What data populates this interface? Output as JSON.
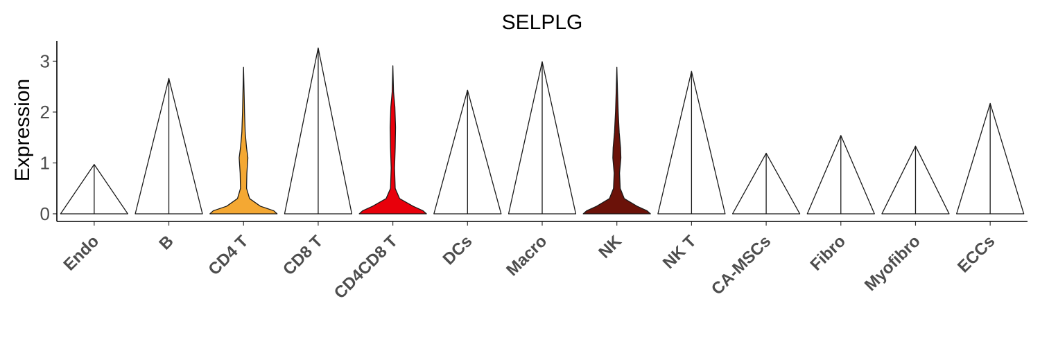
{
  "chart_data": {
    "type": "violin",
    "title": "SELPLG",
    "xlabel": "",
    "ylabel": "Expression",
    "ylim": [
      -0.15,
      3.4
    ],
    "yticks": [
      "0",
      "1",
      "2",
      "3"
    ],
    "grid": false,
    "legend": "none",
    "categories": [
      "Endo",
      "B",
      "CD4 T",
      "CD8 T",
      "CD4CD8 T",
      "DCs",
      "Macro",
      "NK",
      "NK T",
      "CA-MSCs",
      "Fibro",
      "Myofibro",
      "ECCs"
    ],
    "violins": [
      {
        "name": "Endo",
        "max": 0.97,
        "color": "#ffffff",
        "profile": [
          [
            0,
            1.0
          ],
          [
            0.97,
            0.0
          ]
        ]
      },
      {
        "name": "B",
        "max": 2.66,
        "color": "#ffffff",
        "profile": [
          [
            0,
            1.0
          ],
          [
            2.66,
            0.0
          ]
        ]
      },
      {
        "name": "CD4 T",
        "max": 2.88,
        "color": "#f4a833",
        "profile": [
          [
            0,
            1.0
          ],
          [
            0.06,
            0.9
          ],
          [
            0.15,
            0.5
          ],
          [
            0.3,
            0.18
          ],
          [
            0.5,
            0.09
          ],
          [
            0.8,
            0.1
          ],
          [
            1.1,
            0.13
          ],
          [
            1.3,
            0.09
          ],
          [
            1.6,
            0.05
          ],
          [
            2.0,
            0.03
          ],
          [
            2.3,
            0.02
          ],
          [
            2.88,
            0.0
          ]
        ]
      },
      {
        "name": "CD8 T",
        "max": 3.26,
        "color": "#ffffff",
        "profile": [
          [
            0,
            1.0
          ],
          [
            3.26,
            0.0
          ]
        ]
      },
      {
        "name": "CD4CD8 T",
        "max": 2.91,
        "color": "#e8000b",
        "profile": [
          [
            0,
            1.0
          ],
          [
            0.06,
            0.9
          ],
          [
            0.15,
            0.6
          ],
          [
            0.3,
            0.2
          ],
          [
            0.5,
            0.07
          ],
          [
            0.9,
            0.05
          ],
          [
            1.3,
            0.07
          ],
          [
            1.7,
            0.08
          ],
          [
            2.1,
            0.06
          ],
          [
            2.4,
            0.02
          ],
          [
            2.91,
            0.0
          ]
        ]
      },
      {
        "name": "DCs",
        "max": 2.43,
        "color": "#ffffff",
        "profile": [
          [
            0,
            1.0
          ],
          [
            2.43,
            0.0
          ]
        ]
      },
      {
        "name": "Macro",
        "max": 2.99,
        "color": "#ffffff",
        "profile": [
          [
            0,
            1.0
          ],
          [
            2.99,
            0.0
          ]
        ]
      },
      {
        "name": "NK",
        "max": 2.88,
        "color": "#6b1209",
        "profile": [
          [
            0,
            1.0
          ],
          [
            0.06,
            0.9
          ],
          [
            0.15,
            0.6
          ],
          [
            0.3,
            0.22
          ],
          [
            0.5,
            0.1
          ],
          [
            0.8,
            0.08
          ],
          [
            1.1,
            0.12
          ],
          [
            1.3,
            0.11
          ],
          [
            1.6,
            0.07
          ],
          [
            2.0,
            0.04
          ],
          [
            2.4,
            0.02
          ],
          [
            2.88,
            0.0
          ]
        ]
      },
      {
        "name": "NK T",
        "max": 2.8,
        "color": "#ffffff",
        "profile": [
          [
            0,
            1.0
          ],
          [
            2.8,
            0.0
          ]
        ]
      },
      {
        "name": "CA-MSCs",
        "max": 1.19,
        "color": "#ffffff",
        "profile": [
          [
            0,
            1.0
          ],
          [
            1.19,
            0.0
          ]
        ]
      },
      {
        "name": "Fibro",
        "max": 1.54,
        "color": "#ffffff",
        "profile": [
          [
            0,
            1.0
          ],
          [
            1.54,
            0.0
          ]
        ]
      },
      {
        "name": "Myofibro",
        "max": 1.33,
        "color": "#ffffff",
        "profile": [
          [
            0,
            1.0
          ],
          [
            1.33,
            0.0
          ]
        ]
      },
      {
        "name": "ECCs",
        "max": 2.17,
        "color": "#ffffff",
        "profile": [
          [
            0,
            1.0
          ],
          [
            2.17,
            0.0
          ]
        ]
      }
    ]
  }
}
